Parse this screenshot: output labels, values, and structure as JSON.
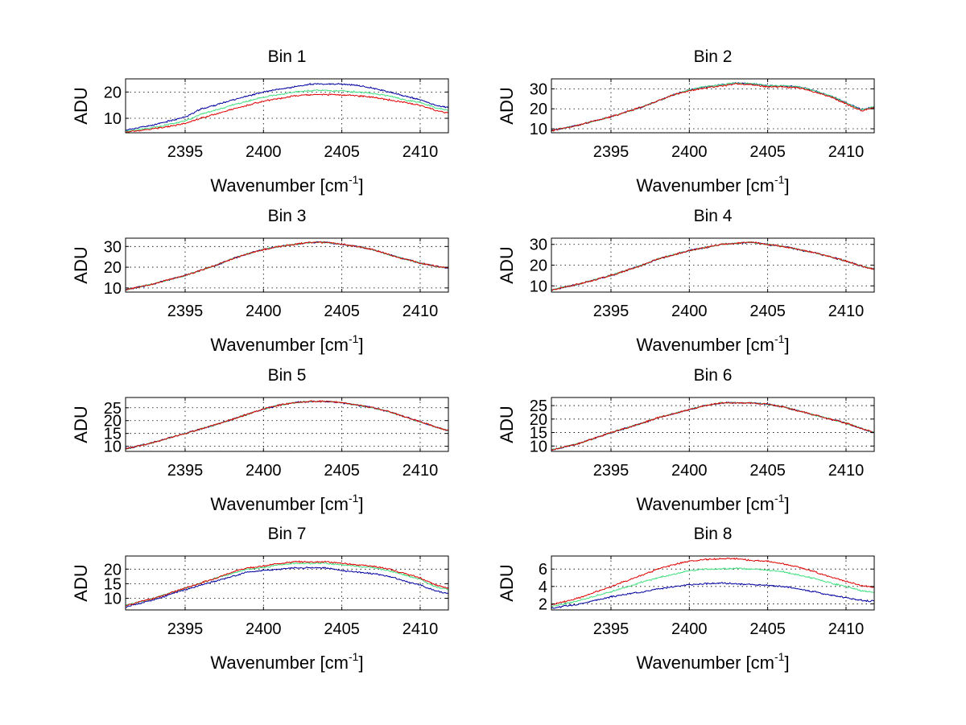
{
  "figure": {
    "series_colors": [
      "#0000a0",
      "#40e080",
      "#e00000"
    ]
  },
  "chart_data": [
    {
      "type": "line",
      "title": "Bin 1",
      "xlabel_main": "Wavenumber [cm",
      "xlabel_sup": "-1",
      "xlabel_end": "]",
      "ylabel": "ADU",
      "xlim": [
        2391.2,
        2411.8
      ],
      "ylim": [
        4.5,
        25
      ],
      "xticks": [
        2395,
        2400,
        2405,
        2410
      ],
      "yticks": [
        10,
        20
      ],
      "x": [
        2391.2,
        2393,
        2395,
        2396,
        2397.5,
        2398,
        2399,
        2400,
        2401,
        2402,
        2403,
        2404,
        2405,
        2406,
        2407,
        2408,
        2409,
        2410,
        2411,
        2411.8
      ],
      "series": [
        {
          "values": [
            5.5,
            7.5,
            10.5,
            13.5,
            16,
            17,
            18.5,
            20,
            21,
            22,
            23,
            23,
            23,
            22.5,
            21.5,
            20,
            18.5,
            17,
            15,
            14
          ]
        },
        {
          "values": [
            5,
            6.5,
            9,
            11.5,
            14,
            15,
            16.5,
            18,
            19,
            20,
            20.5,
            20.5,
            20.5,
            20,
            19.5,
            18.5,
            17,
            16,
            14,
            13
          ]
        },
        {
          "values": [
            4.8,
            6,
            8,
            10,
            12.5,
            13.5,
            15,
            16.5,
            17.5,
            18.5,
            19,
            19,
            19,
            18.5,
            18,
            17,
            16,
            15,
            13,
            12
          ]
        }
      ]
    },
    {
      "type": "line",
      "title": "Bin 2",
      "xlabel_main": "Wavenumber [cm",
      "xlabel_sup": "-1",
      "xlabel_end": "]",
      "ylabel": "ADU",
      "xlim": [
        2391.2,
        2411.8
      ],
      "ylim": [
        8,
        35
      ],
      "xticks": [
        2395,
        2400,
        2405,
        2410
      ],
      "yticks": [
        10,
        20,
        30
      ],
      "x": [
        2391.2,
        2393,
        2395,
        2397,
        2398,
        2399,
        2400,
        2401,
        2402,
        2403,
        2404,
        2405,
        2406,
        2407,
        2408,
        2409,
        2410,
        2411,
        2411.8
      ],
      "series": [
        {
          "values": [
            9,
            12,
            16,
            21,
            24,
            27,
            29.5,
            31,
            32,
            33,
            32.5,
            31.5,
            31.5,
            31,
            29,
            26.5,
            23,
            19.5,
            21
          ]
        },
        {
          "values": [
            9,
            12,
            16,
            21,
            24,
            27,
            29.5,
            31,
            32,
            33,
            32.5,
            31.5,
            31.5,
            31,
            29,
            26.5,
            23,
            19.5,
            21
          ]
        },
        {
          "values": [
            9,
            12,
            16,
            21,
            24,
            27,
            29,
            30.5,
            31.5,
            32.5,
            32,
            31,
            31,
            30.5,
            28.5,
            26,
            22.5,
            19,
            20.5
          ]
        }
      ]
    },
    {
      "type": "line",
      "title": "Bin 3",
      "xlabel_main": "Wavenumber [cm",
      "xlabel_sup": "-1",
      "xlabel_end": "]",
      "ylabel": "ADU",
      "xlim": [
        2391.2,
        2411.8
      ],
      "ylim": [
        8,
        34
      ],
      "xticks": [
        2395,
        2400,
        2405,
        2410
      ],
      "yticks": [
        10,
        20,
        30
      ],
      "x": [
        2391.2,
        2393,
        2395,
        2397,
        2398,
        2399,
        2400,
        2401,
        2402,
        2403,
        2404,
        2405,
        2406,
        2407,
        2408,
        2409,
        2410,
        2411,
        2411.8
      ],
      "series": [
        {
          "values": [
            9,
            12,
            16,
            21,
            24,
            26.5,
            28.5,
            30,
            31,
            32,
            32,
            31,
            30,
            28.5,
            26,
            24,
            22,
            20.5,
            19.5
          ]
        },
        {
          "values": [
            9,
            12,
            16,
            21,
            24,
            26.5,
            28.5,
            30,
            31,
            32,
            32,
            31,
            30,
            28.5,
            26,
            24,
            22,
            20.5,
            19.5
          ]
        },
        {
          "values": [
            9,
            12,
            16,
            21,
            24,
            26.5,
            28.5,
            30,
            31,
            32,
            32,
            31,
            30,
            28.5,
            26,
            24,
            22,
            20.5,
            19.5
          ]
        }
      ]
    },
    {
      "type": "line",
      "title": "Bin 4",
      "xlabel_main": "Wavenumber [cm",
      "xlabel_sup": "-1",
      "xlabel_end": "]",
      "ylabel": "ADU",
      "xlim": [
        2391.2,
        2411.8
      ],
      "ylim": [
        7,
        33
      ],
      "xticks": [
        2395,
        2400,
        2405,
        2410
      ],
      "yticks": [
        10,
        20,
        30
      ],
      "x": [
        2391.2,
        2393,
        2395,
        2397,
        2398,
        2399,
        2400,
        2401,
        2402,
        2403,
        2404,
        2405,
        2406,
        2407,
        2408,
        2409,
        2410,
        2411,
        2411.8
      ],
      "series": [
        {
          "values": [
            8,
            11,
            15,
            20,
            23,
            25,
            27,
            28.5,
            30,
            30.5,
            31,
            30,
            29,
            27.5,
            26,
            24,
            22,
            19.5,
            18
          ]
        },
        {
          "values": [
            8,
            11,
            15,
            20,
            23,
            25,
            27,
            28.5,
            30,
            30.5,
            31,
            30,
            29,
            27.5,
            26,
            24,
            22,
            19.5,
            18
          ]
        },
        {
          "values": [
            8,
            11,
            15,
            20,
            23,
            25,
            27,
            28.5,
            30,
            30.5,
            31,
            30,
            29,
            27.5,
            26,
            24,
            22,
            19.5,
            18
          ]
        }
      ]
    },
    {
      "type": "line",
      "title": "Bin 5",
      "xlabel_main": "Wavenumber [cm",
      "xlabel_sup": "-1",
      "xlabel_end": "]",
      "ylabel": "ADU",
      "xlim": [
        2391.2,
        2411.8
      ],
      "ylim": [
        8,
        29
      ],
      "xticks": [
        2395,
        2400,
        2405,
        2410
      ],
      "yticks": [
        10,
        15,
        20,
        25
      ],
      "x": [
        2391.2,
        2393,
        2395,
        2397,
        2398,
        2399,
        2400,
        2401,
        2402,
        2403,
        2404,
        2405,
        2406,
        2407,
        2408,
        2409,
        2410,
        2411,
        2411.8
      ],
      "series": [
        {
          "values": [
            9,
            11.5,
            15,
            18.5,
            20.5,
            22.5,
            24.5,
            26,
            27,
            27.5,
            27.5,
            27,
            26,
            25,
            23.5,
            21.5,
            19.5,
            17.5,
            16
          ]
        },
        {
          "values": [
            9,
            11.5,
            15,
            18.5,
            20.5,
            22.5,
            24.5,
            26,
            27,
            27.5,
            27.5,
            27,
            26,
            25,
            23.5,
            21.5,
            19.5,
            17.5,
            16
          ]
        },
        {
          "values": [
            9,
            11.5,
            15,
            18.5,
            20.5,
            22.5,
            24.5,
            26,
            27,
            27.5,
            27.5,
            27,
            26,
            25,
            23.5,
            21.5,
            19.5,
            17.5,
            16
          ]
        }
      ]
    },
    {
      "type": "line",
      "title": "Bin 6",
      "xlabel_main": "Wavenumber [cm",
      "xlabel_sup": "-1",
      "xlabel_end": "]",
      "ylabel": "ADU",
      "xlim": [
        2391.2,
        2411.8
      ],
      "ylim": [
        8,
        28
      ],
      "xticks": [
        2395,
        2400,
        2405,
        2410
      ],
      "yticks": [
        10,
        15,
        20,
        25
      ],
      "x": [
        2391.2,
        2393,
        2395,
        2397,
        2398,
        2399,
        2400,
        2401,
        2402,
        2403,
        2404,
        2405,
        2406,
        2407,
        2408,
        2409,
        2410,
        2411,
        2411.8
      ],
      "series": [
        {
          "values": [
            8.5,
            11,
            15,
            18.5,
            20.5,
            22,
            23.5,
            25,
            26,
            26,
            26,
            25.5,
            24.5,
            23,
            21.5,
            20,
            18.5,
            16.5,
            15
          ]
        },
        {
          "values": [
            8.5,
            11,
            15,
            18.5,
            20.5,
            22,
            23.5,
            25,
            26,
            26,
            26,
            25.5,
            24.5,
            23,
            21.5,
            20,
            18.5,
            16.5,
            15
          ]
        },
        {
          "values": [
            8.5,
            11,
            15,
            18.5,
            20.5,
            22,
            23.5,
            25,
            26,
            26,
            26,
            25.5,
            24.5,
            23,
            21.5,
            20,
            18.5,
            16.5,
            15
          ]
        }
      ]
    },
    {
      "type": "line",
      "title": "Bin 7",
      "xlabel_main": "Wavenumber [cm",
      "xlabel_sup": "-1",
      "xlabel_end": "]",
      "ylabel": "ADU",
      "xlim": [
        2391.2,
        2411.8
      ],
      "ylim": [
        6,
        24.5
      ],
      "xticks": [
        2395,
        2400,
        2405,
        2410
      ],
      "yticks": [
        10,
        15,
        20
      ],
      "x": [
        2391.2,
        2393,
        2395,
        2397,
        2398,
        2399,
        2400,
        2401,
        2402,
        2403,
        2404,
        2405,
        2406,
        2407,
        2408,
        2409,
        2410,
        2411,
        2411.8
      ],
      "series": [
        {
          "values": [
            7,
            9.5,
            13,
            16,
            17.5,
            19,
            19.5,
            20,
            20.5,
            20.5,
            20.5,
            19.5,
            19,
            18.5,
            17.5,
            16,
            14.5,
            12.5,
            11.5
          ]
        },
        {
          "values": [
            7.5,
            10,
            13.5,
            17,
            18.5,
            20,
            20.5,
            21.5,
            22,
            22,
            22,
            21.5,
            21,
            20.5,
            19.5,
            18,
            16.5,
            14,
            13
          ]
        },
        {
          "values": [
            7.5,
            10,
            13.5,
            17,
            19,
            20.5,
            21,
            22,
            22.5,
            22.5,
            22.5,
            22,
            21.5,
            21,
            20,
            18.5,
            17,
            14.5,
            13.5
          ]
        }
      ]
    },
    {
      "type": "line",
      "title": "Bin 8",
      "xlabel_main": "Wavenumber [cm",
      "xlabel_sup": "-1",
      "xlabel_end": "]",
      "ylabel": "ADU",
      "xlim": [
        2391.2,
        2411.8
      ],
      "ylim": [
        1.3,
        7.5
      ],
      "xticks": [
        2395,
        2400,
        2405,
        2410
      ],
      "yticks": [
        2,
        4,
        6
      ],
      "x": [
        2391.2,
        2393,
        2395,
        2397,
        2398,
        2399,
        2400,
        2401,
        2402,
        2403,
        2404,
        2405,
        2406,
        2407,
        2408,
        2409,
        2410,
        2411,
        2411.8
      ],
      "series": [
        {
          "values": [
            1.5,
            2,
            2.8,
            3.4,
            3.7,
            4,
            4.2,
            4.3,
            4.4,
            4.3,
            4.2,
            4.1,
            4,
            3.7,
            3.4,
            3,
            2.7,
            2.4,
            2.3
          ]
        },
        {
          "values": [
            1.7,
            2.4,
            3.4,
            4.5,
            5,
            5.4,
            5.8,
            6,
            6,
            6.1,
            6,
            5.9,
            5.7,
            5.3,
            4.9,
            4.4,
            4,
            3.5,
            3.3
          ]
        },
        {
          "values": [
            1.9,
            2.7,
            4,
            5.3,
            6,
            6.5,
            6.9,
            7.1,
            7.2,
            7.2,
            7,
            6.9,
            6.6,
            6.2,
            5.7,
            5.1,
            4.6,
            4.1,
            3.9
          ]
        }
      ]
    }
  ]
}
